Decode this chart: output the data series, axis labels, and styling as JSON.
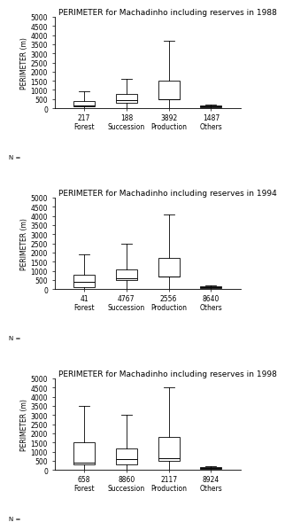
{
  "panels": [
    {
      "title": "PERIMETER for Machadinho including reserves in 1988",
      "categories": [
        "Forest",
        "Succession",
        "Production",
        "Others"
      ],
      "n_labels": [
        "217",
        "188",
        "3892",
        "1487"
      ],
      "ylim": [
        0,
        5000
      ],
      "yticks": [
        0,
        500,
        1000,
        1500,
        2000,
        2500,
        3000,
        3500,
        4000,
        4500,
        5000
      ],
      "boxes": [
        {
          "whislo": 0,
          "q1": 100,
          "med": 150,
          "q3": 400,
          "whishi": 950
        },
        {
          "whislo": 0,
          "q1": 300,
          "med": 450,
          "q3": 800,
          "whishi": 1600
        },
        {
          "whislo": 0,
          "q1": 500,
          "med": 500,
          "q3": 1500,
          "whishi": 3700
        },
        {
          "whislo": 0,
          "q1": 55,
          "med": 100,
          "q3": 150,
          "whishi": 220
        }
      ]
    },
    {
      "title": "PERIMETER for Machadinho including reserves in 1994",
      "categories": [
        "Forest",
        "Succession",
        "Production",
        "Others"
      ],
      "n_labels": [
        "41",
        "4767",
        "2556",
        "8640"
      ],
      "ylim": [
        0,
        5000
      ],
      "yticks": [
        0,
        500,
        1000,
        1500,
        2000,
        2500,
        3000,
        3500,
        4000,
        4500,
        5000
      ],
      "boxes": [
        {
          "whislo": 0,
          "q1": 100,
          "med": 380,
          "q3": 800,
          "whishi": 1900
        },
        {
          "whislo": 0,
          "q1": 500,
          "med": 600,
          "q3": 1100,
          "whishi": 2500
        },
        {
          "whislo": 0,
          "q1": 700,
          "med": 700,
          "q3": 1700,
          "whishi": 4100
        },
        {
          "whislo": 0,
          "q1": 55,
          "med": 100,
          "q3": 150,
          "whishi": 200
        }
      ]
    },
    {
      "title": "PERIMETER for Machadinho including reserves in 1998",
      "categories": [
        "Forest",
        "Succession",
        "Production",
        "Others"
      ],
      "n_labels": [
        "658",
        "8860",
        "2117",
        "8924"
      ],
      "ylim": [
        0,
        5000
      ],
      "yticks": [
        0,
        500,
        1000,
        1500,
        2000,
        2500,
        3000,
        3500,
        4000,
        4500,
        5000
      ],
      "boxes": [
        {
          "whislo": 0,
          "q1": 300,
          "med": 400,
          "q3": 1500,
          "whishi": 3500
        },
        {
          "whislo": 0,
          "q1": 300,
          "med": 600,
          "q3": 1200,
          "whishi": 3000
        },
        {
          "whislo": 0,
          "q1": 500,
          "med": 650,
          "q3": 1800,
          "whishi": 4500
        },
        {
          "whislo": 0,
          "q1": 55,
          "med": 100,
          "q3": 160,
          "whishi": 220
        }
      ]
    }
  ],
  "ylabel": "PERIMETER (m)",
  "n_label_prefix": "N =",
  "background_color": "#ffffff",
  "box_facecolor": "#ffffff",
  "box_edge_color": "#000000",
  "whisker_color": "#000000",
  "median_color": "#000000",
  "title_fontsize": 6.5,
  "tick_fontsize": 5.5,
  "label_fontsize": 5.5,
  "ylabel_fontsize": 5.5,
  "n_fontsize": 5.0
}
